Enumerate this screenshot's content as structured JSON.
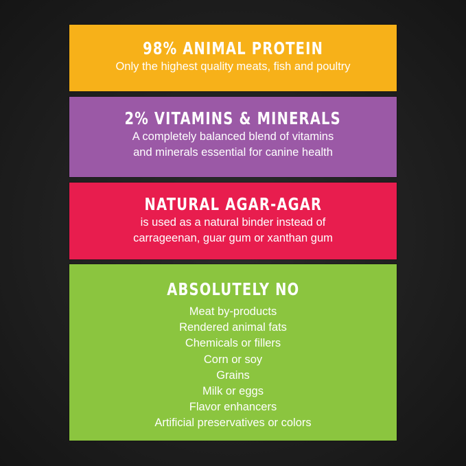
{
  "panels": [
    {
      "title": "98% ANIMAL PROTEIN",
      "lines": [
        "Only the highest quality meats, fish and poultry"
      ],
      "color": "#f7b119"
    },
    {
      "title": "2% VITAMINS & MINERALS",
      "lines": [
        "A completely balanced blend of vitamins",
        "and minerals essential for canine health"
      ],
      "color": "#9b59a6"
    },
    {
      "title": "NATURAL AGAR-AGAR",
      "lines": [
        "is used as a natural binder instead of",
        "carrageenan, guar gum or xanthan gum"
      ],
      "color": "#e81d4e"
    },
    {
      "title": "ABSOLUTELY NO",
      "lines": [
        "Meat by-products",
        "Rendered animal fats",
        "Chemicals or fillers",
        "Corn or soy",
        "Grains",
        "Milk or eggs",
        "Flavor enhancers",
        "Artificial preservatives or colors"
      ],
      "color": "#8bc53f"
    }
  ]
}
